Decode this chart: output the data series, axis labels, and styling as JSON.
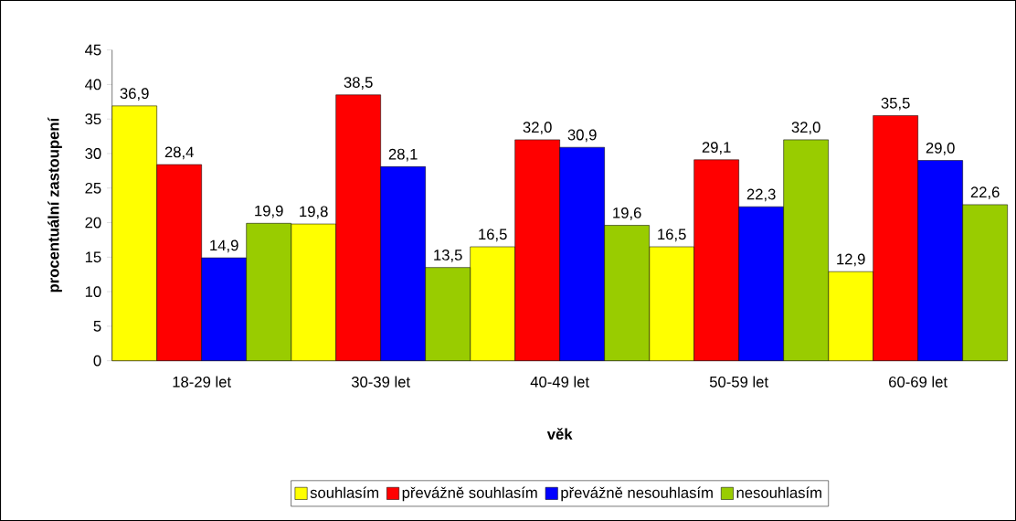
{
  "chart_data": {
    "type": "bar",
    "xlabel": "věk",
    "ylabel": "procentuální zastoupení",
    "categories": [
      "18-29 let",
      "30-39 let",
      "40-49 let",
      "50-59 let",
      "60-69 let"
    ],
    "ylim": [
      0,
      45
    ],
    "yticks": [
      0,
      5,
      10,
      15,
      20,
      25,
      30,
      35,
      40,
      45
    ],
    "grid": false,
    "legend": "bottom",
    "series": [
      {
        "name": "souhlasím",
        "color": "#ffff00",
        "values": [
          36.9,
          19.8,
          16.5,
          16.5,
          12.9
        ],
        "value_labels": [
          "36,9",
          "19,8",
          "16,5",
          "16,5",
          "12,9"
        ]
      },
      {
        "name": "převážně souhlasím",
        "color": "#ff0000",
        "values": [
          28.4,
          38.5,
          32.0,
          29.1,
          35.5
        ],
        "value_labels": [
          "28,4",
          "38,5",
          "32,0",
          "29,1",
          "35,5"
        ]
      },
      {
        "name": "převážně nesouhlasím",
        "color": "#0000ff",
        "values": [
          14.9,
          28.1,
          30.9,
          22.3,
          29.0
        ],
        "value_labels": [
          "14,9",
          "28,1",
          "30,9",
          "22,3",
          "29,0"
        ]
      },
      {
        "name": "nesouhlasím",
        "color": "#99cc00",
        "values": [
          19.9,
          13.5,
          19.6,
          32.0,
          22.6
        ],
        "value_labels": [
          "19,9",
          "13,5",
          "19,6",
          "32,0",
          "22,6"
        ]
      }
    ]
  }
}
